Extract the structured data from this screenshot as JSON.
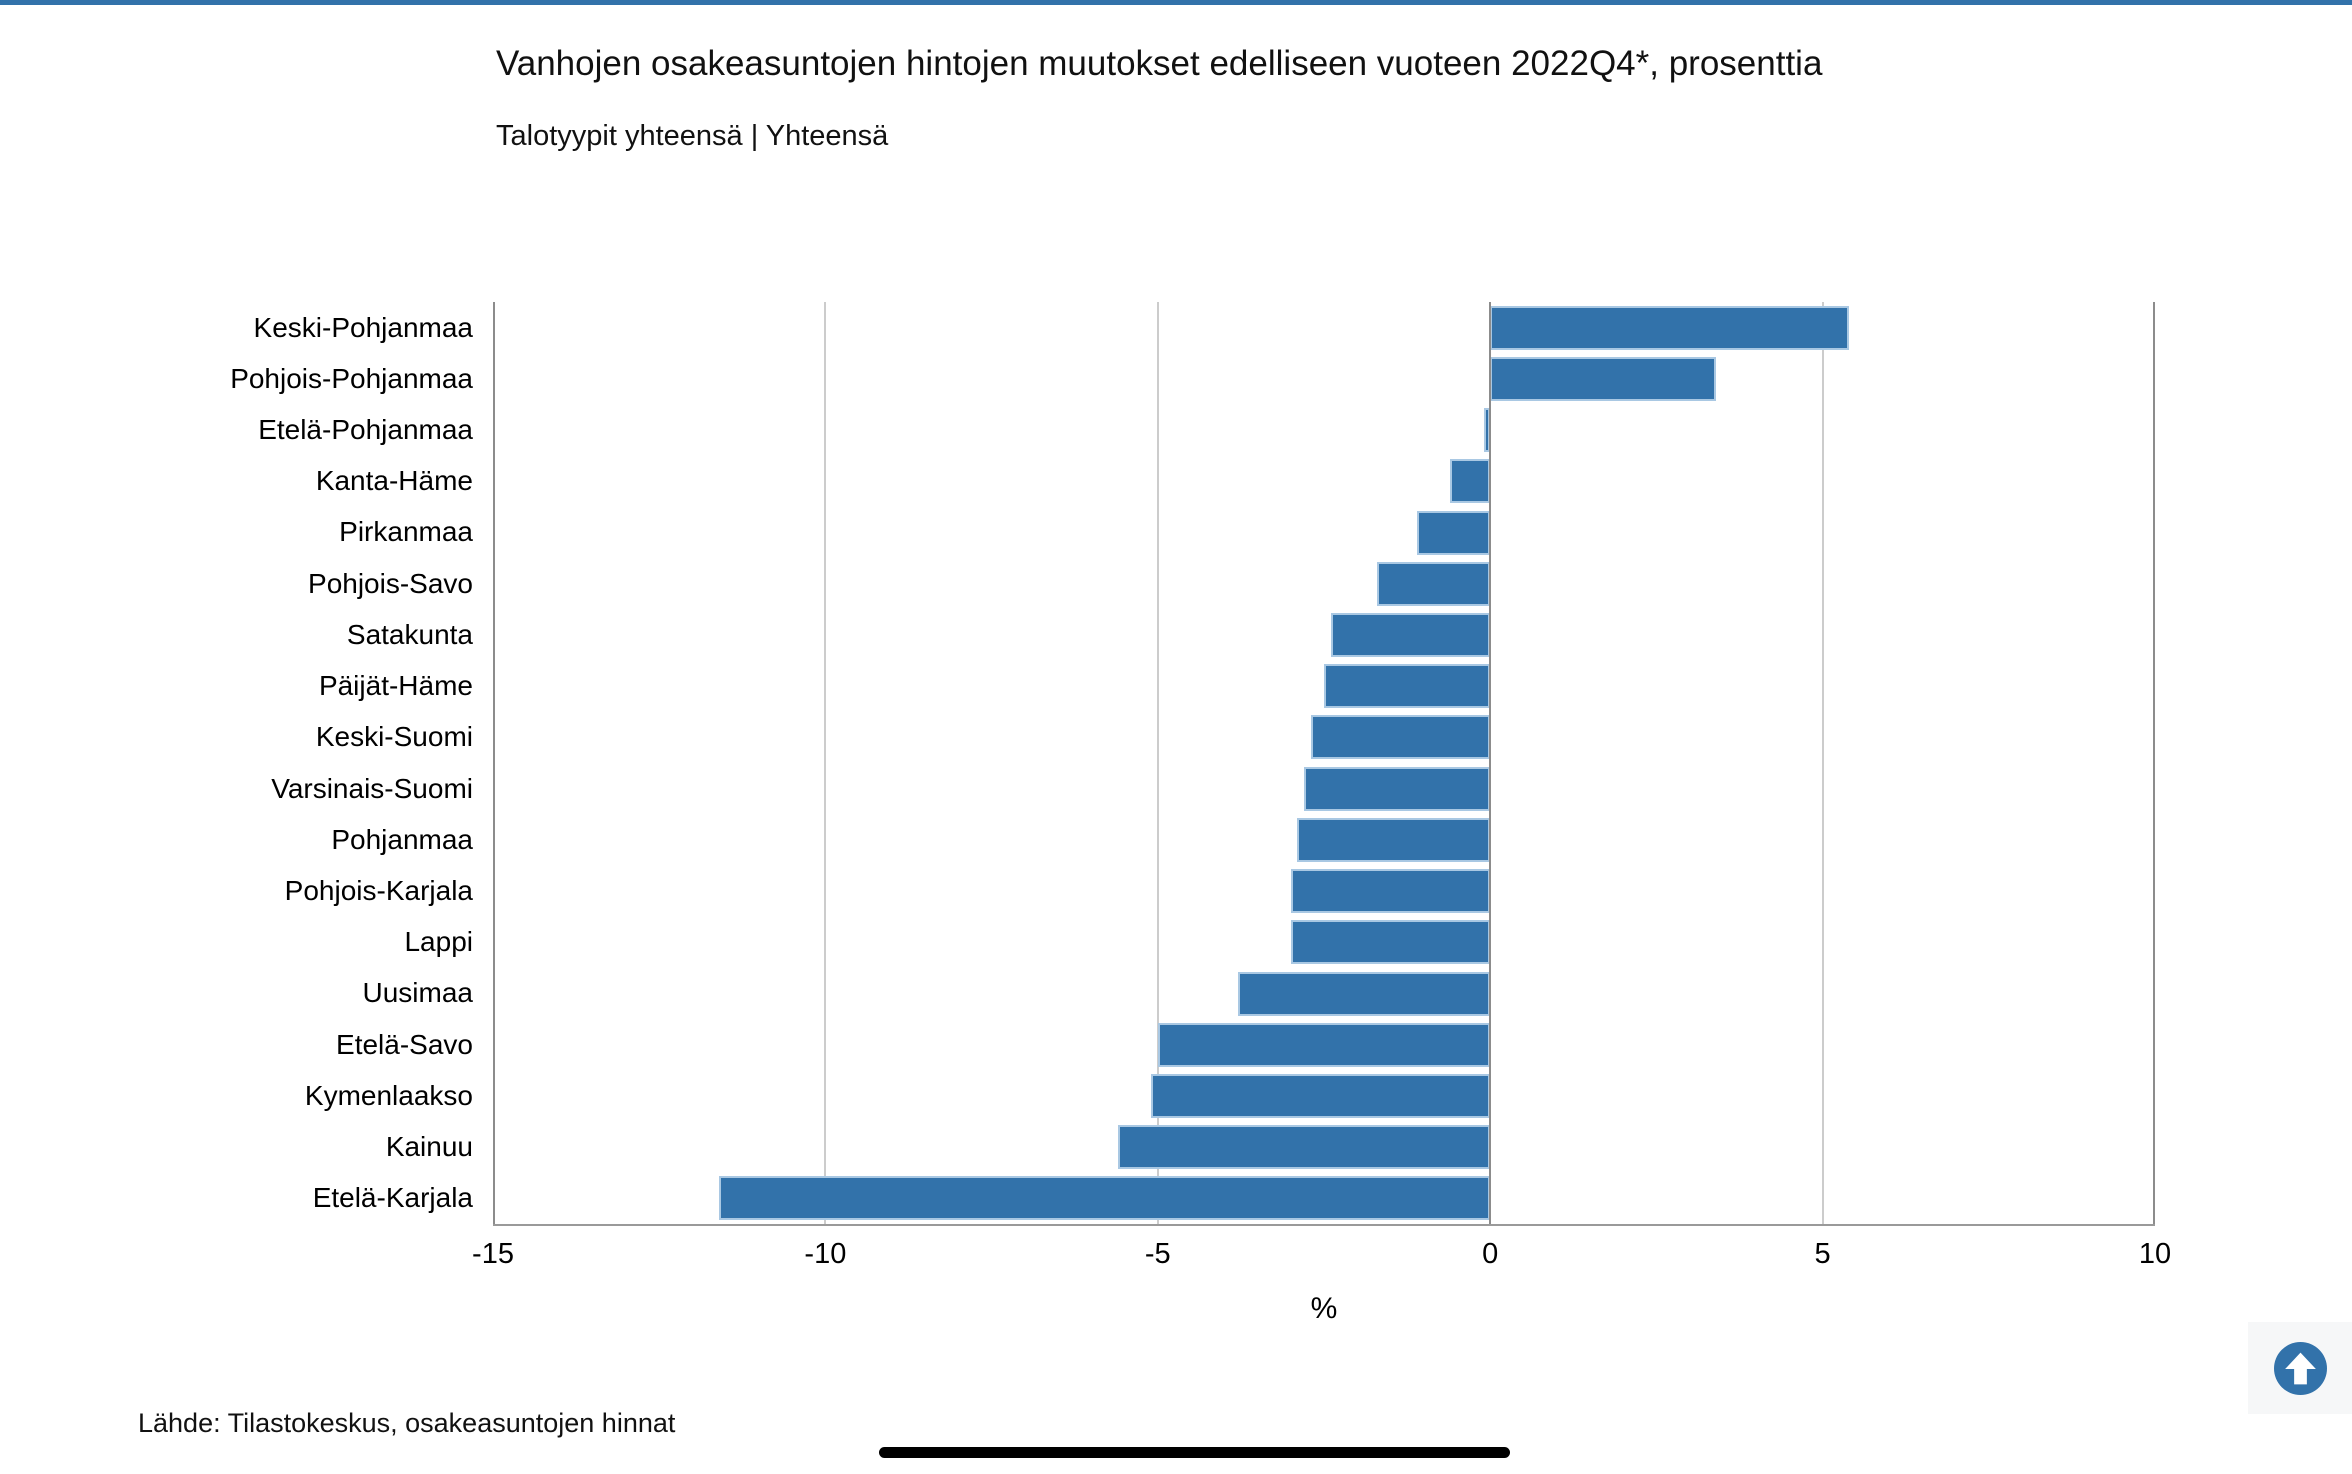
{
  "theme": {
    "accent_blue": "#3272aa",
    "bar_border": "#a9c8e3",
    "gridline_color": "#cccccc",
    "axis_color": "#8c8c8c"
  },
  "page": {
    "source_text": "Lähde: Tilastokeskus, osakeasuntojen hinnat",
    "scroll_top_label": "scroll-to-top"
  },
  "chart_data": {
    "type": "bar",
    "orientation": "horizontal",
    "title": "Vanhojen osakeasuntojen hintojen muutokset edelliseen vuoteen 2022Q4*, prosenttia",
    "subtitle": "Talotyypit yhteensä | Yhteensä",
    "xlabel": "%",
    "ylabel": "",
    "xlim": [
      -15,
      10
    ],
    "xticks": [
      -15,
      -10,
      -5,
      0,
      5,
      10
    ],
    "grid": true,
    "legend": "none",
    "bar_color": "#3272aa",
    "categories": [
      "Keski-Pohjanmaa",
      "Pohjois-Pohjanmaa",
      "Etelä-Pohjanmaa",
      "Kanta-Häme",
      "Pirkanmaa",
      "Pohjois-Savo",
      "Satakunta",
      "Päijät-Häme",
      "Keski-Suomi",
      "Varsinais-Suomi",
      "Pohjanmaa",
      "Pohjois-Karjala",
      "Lappi",
      "Uusimaa",
      "Etelä-Savo",
      "Kymenlaakso",
      "Kainuu",
      "Etelä-Karjala"
    ],
    "values": [
      5.4,
      3.4,
      -0.1,
      -0.6,
      -1.1,
      -1.7,
      -2.4,
      -2.5,
      -2.7,
      -2.8,
      -2.9,
      -3.0,
      -3.0,
      -3.8,
      -5.0,
      -5.1,
      -5.6,
      -11.6
    ]
  }
}
